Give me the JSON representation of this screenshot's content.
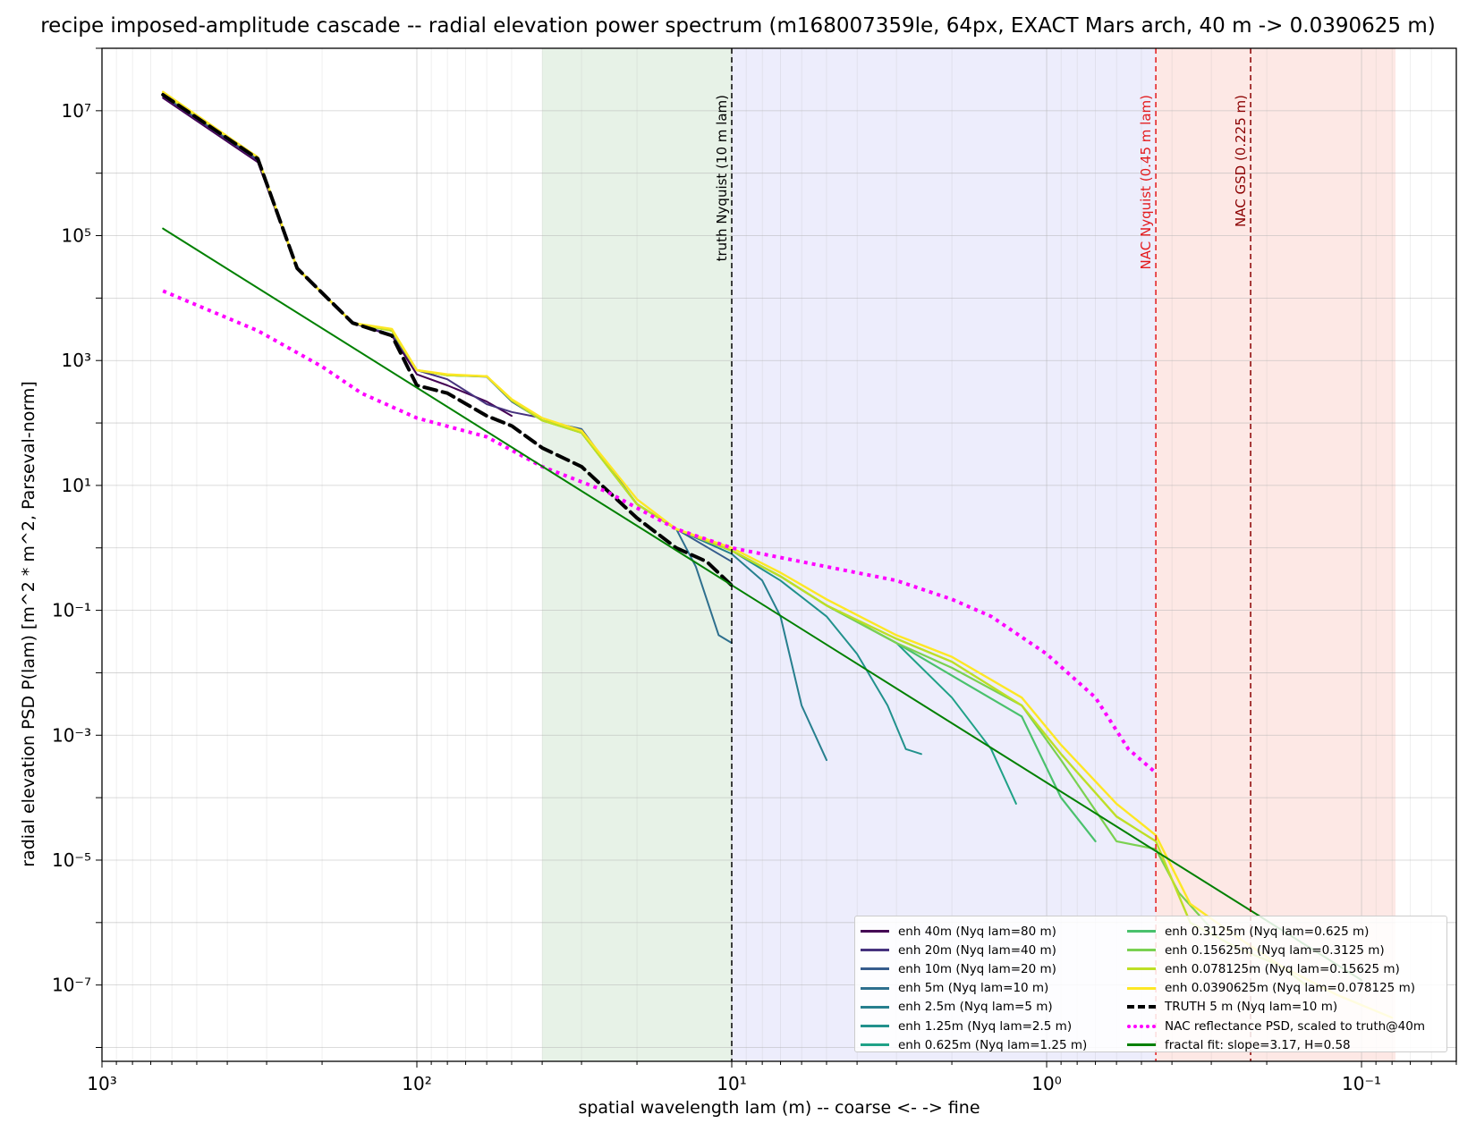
{
  "chart_data": {
    "type": "line",
    "title": "recipe imposed-amplitude cascade -- radial elevation power spectrum (m168007359le, 64px, EXACT Mars arch, 40 m -> 0.0390625 m)",
    "xlabel": "spatial wavelength lam (m) -- coarse <- -> fine",
    "ylabel": "radial elevation PSD  P(lam)  [m^2 * m^2, Parseval-norm]",
    "x_scale": "log",
    "y_scale": "log",
    "x_inverted": true,
    "xlim": [
      1000,
      0.05
    ],
    "ylim": [
      6e-09,
      100000000.0
    ],
    "x_ticks": [
      {
        "value": 1000,
        "label": "10³"
      },
      {
        "value": 100,
        "label": "10²"
      },
      {
        "value": 10,
        "label": "10¹"
      },
      {
        "value": 1,
        "label": "10⁰"
      },
      {
        "value": 0.1,
        "label": "10⁻¹"
      }
    ],
    "y_ticks": [
      {
        "value": 10000000.0,
        "label": "10⁷"
      },
      {
        "value": 100000.0,
        "label": "10⁵"
      },
      {
        "value": 1000.0,
        "label": "10³"
      },
      {
        "value": 10,
        "label": "10¹"
      },
      {
        "value": 0.1,
        "label": "10⁻¹"
      },
      {
        "value": 0.001,
        "label": "10⁻³"
      },
      {
        "value": 1e-05,
        "label": "10⁻⁵"
      },
      {
        "value": 1e-07,
        "label": "10⁻⁷"
      }
    ],
    "grid": true,
    "bands": [
      {
        "x_from": 40,
        "x_to": 10,
        "color": "#e1efe1"
      },
      {
        "x_from": 10,
        "x_to": 0.45,
        "color": "#e8e8fb"
      },
      {
        "x_from": 0.45,
        "x_to": 0.078,
        "color": "#fde2df"
      }
    ],
    "vlines": [
      {
        "x": 10,
        "label": "truth Nyquist (10 m lam)",
        "color": "#000000"
      },
      {
        "x": 0.45,
        "label": "NAC Nyquist (0.45 m lam)",
        "color": "#e31a1c"
      },
      {
        "x": 0.225,
        "label": "NAC GSD (0.225 m)",
        "color": "#8b0000"
      }
    ],
    "legend_position": "lower right",
    "series": [
      {
        "name": "enh 40m (Nyq lam=80 m)",
        "color": "#440154",
        "style": "solid",
        "width": 2,
        "points": [
          [
            640,
            16000000.0
          ],
          [
            320,
            1500000.0
          ],
          [
            240,
            30000.0
          ],
          [
            160,
            4000.0
          ],
          [
            120,
            2500.0
          ],
          [
            100,
            600
          ],
          [
            80,
            400
          ],
          [
            60,
            220
          ],
          [
            50,
            130
          ]
        ]
      },
      {
        "name": "enh 20m (Nyq lam=40 m)",
        "color": "#46327e",
        "style": "solid",
        "width": 2,
        "points": [
          [
            640,
            17000000.0
          ],
          [
            320,
            1600000.0
          ],
          [
            240,
            30000.0
          ],
          [
            160,
            4000.0
          ],
          [
            120,
            2600.0
          ],
          [
            100,
            700
          ],
          [
            80,
            500
          ],
          [
            60,
            200
          ],
          [
            50,
            150
          ],
          [
            40,
            120
          ]
        ]
      },
      {
        "name": "enh 10m (Nyq lam=20 m)",
        "color": "#365c8d",
        "style": "solid",
        "width": 2,
        "points": [
          [
            640,
            18000000.0
          ],
          [
            320,
            1700000.0
          ],
          [
            240,
            30000.0
          ],
          [
            160,
            4000.0
          ],
          [
            120,
            3000.0
          ],
          [
            100,
            700
          ],
          [
            80,
            580
          ],
          [
            60,
            550
          ],
          [
            50,
            220
          ],
          [
            40,
            110
          ],
          [
            30,
            80
          ],
          [
            20,
            5
          ],
          [
            15,
            2
          ],
          [
            10,
            0.6
          ]
        ]
      },
      {
        "name": "enh 5m (Nyq lam=10 m)",
        "color": "#2e6f8e",
        "style": "solid",
        "width": 2,
        "points": [
          [
            640,
            19000000.0
          ],
          [
            320,
            1800000.0
          ],
          [
            240,
            30000.0
          ],
          [
            160,
            4000.0
          ],
          [
            120,
            3000.0
          ],
          [
            100,
            700
          ],
          [
            80,
            580
          ],
          [
            60,
            560
          ],
          [
            50,
            230
          ],
          [
            40,
            110
          ],
          [
            30,
            70
          ],
          [
            20,
            5
          ],
          [
            15,
            2
          ],
          [
            13,
            0.5
          ],
          [
            11,
            0.04
          ],
          [
            10,
            0.03
          ]
        ]
      },
      {
        "name": "enh 2.5m (Nyq lam=5 m)",
        "color": "#277f8e",
        "style": "solid",
        "width": 2,
        "points": [
          [
            640,
            19000000.0
          ],
          [
            320,
            1800000.0
          ],
          [
            240,
            30000.0
          ],
          [
            160,
            4000.0
          ],
          [
            120,
            3000.0
          ],
          [
            100,
            700
          ],
          [
            80,
            580
          ],
          [
            60,
            560
          ],
          [
            50,
            230
          ],
          [
            40,
            110
          ],
          [
            30,
            70
          ],
          [
            20,
            5
          ],
          [
            15,
            2
          ],
          [
            10,
            0.8
          ],
          [
            8,
            0.3
          ],
          [
            7,
            0.08
          ],
          [
            6,
            0.003
          ],
          [
            5,
            0.0004
          ]
        ]
      },
      {
        "name": "enh 1.25m (Nyq lam=2.5 m)",
        "color": "#21918c",
        "style": "solid",
        "width": 2,
        "points": [
          [
            640,
            19000000.0
          ],
          [
            320,
            1800000.0
          ],
          [
            240,
            30000.0
          ],
          [
            160,
            4000.0
          ],
          [
            120,
            3000.0
          ],
          [
            100,
            700
          ],
          [
            80,
            580
          ],
          [
            60,
            560
          ],
          [
            50,
            230
          ],
          [
            40,
            110
          ],
          [
            30,
            70
          ],
          [
            20,
            5
          ],
          [
            15,
            2
          ],
          [
            10,
            0.9
          ],
          [
            7,
            0.3
          ],
          [
            5,
            0.08
          ],
          [
            4,
            0.02
          ],
          [
            3.2,
            0.003
          ],
          [
            2.8,
            0.0006
          ],
          [
            2.5,
            0.0005
          ]
        ]
      },
      {
        "name": "enh 0.625m (Nyq lam=1.25 m)",
        "color": "#1fa187",
        "style": "solid",
        "width": 2,
        "points": [
          [
            640,
            19000000.0
          ],
          [
            320,
            1800000.0
          ],
          [
            240,
            30000.0
          ],
          [
            160,
            4000.0
          ],
          [
            120,
            3000.0
          ],
          [
            100,
            700
          ],
          [
            80,
            580
          ],
          [
            60,
            560
          ],
          [
            50,
            230
          ],
          [
            40,
            110
          ],
          [
            30,
            70
          ],
          [
            20,
            5
          ],
          [
            15,
            2
          ],
          [
            10,
            0.9
          ],
          [
            7,
            0.35
          ],
          [
            5,
            0.12
          ],
          [
            3,
            0.03
          ],
          [
            2,
            0.004
          ],
          [
            1.5,
            0.0006
          ],
          [
            1.25,
            8e-05
          ]
        ]
      },
      {
        "name": "enh 0.3125m (Nyq lam=0.625 m)",
        "color": "#4ac16d",
        "style": "solid",
        "width": 2.2,
        "points": [
          [
            640,
            19000000.0
          ],
          [
            320,
            1800000.0
          ],
          [
            240,
            30000.0
          ],
          [
            160,
            4000.0
          ],
          [
            120,
            3000.0
          ],
          [
            100,
            700
          ],
          [
            80,
            580
          ],
          [
            60,
            560
          ],
          [
            50,
            230
          ],
          [
            40,
            110
          ],
          [
            30,
            70
          ],
          [
            20,
            5
          ],
          [
            15,
            2
          ],
          [
            10,
            0.9
          ],
          [
            7,
            0.35
          ],
          [
            5,
            0.12
          ],
          [
            3,
            0.03
          ],
          [
            2,
            0.009
          ],
          [
            1.2,
            0.002
          ],
          [
            0.9,
            0.0001
          ],
          [
            0.7,
            2e-05
          ]
        ]
      },
      {
        "name": "enh 0.15625m (Nyq lam=0.3125 m)",
        "color": "#7ad151",
        "style": "solid",
        "width": 2.2,
        "points": [
          [
            640,
            19000000.0
          ],
          [
            320,
            1800000.0
          ],
          [
            240,
            30000.0
          ],
          [
            160,
            4000.0
          ],
          [
            120,
            3000.0
          ],
          [
            100,
            700
          ],
          [
            80,
            580
          ],
          [
            60,
            560
          ],
          [
            50,
            230
          ],
          [
            40,
            110
          ],
          [
            30,
            70
          ],
          [
            20,
            5
          ],
          [
            15,
            2
          ],
          [
            10,
            0.9
          ],
          [
            7,
            0.35
          ],
          [
            5,
            0.12
          ],
          [
            3,
            0.03
          ],
          [
            2,
            0.012
          ],
          [
            1.2,
            0.003
          ],
          [
            0.9,
            0.0004
          ],
          [
            0.6,
            2e-05
          ],
          [
            0.45,
            1.5e-05
          ],
          [
            0.38,
            3e-06
          ],
          [
            0.3,
            8e-07
          ]
        ]
      },
      {
        "name": "enh 0.078125m (Nyq lam=0.15625 m)",
        "color": "#bddf26",
        "style": "solid",
        "width": 2.4,
        "points": [
          [
            640,
            19000000.0
          ],
          [
            320,
            1800000.0
          ],
          [
            240,
            30000.0
          ],
          [
            160,
            4000.0
          ],
          [
            120,
            3000.0
          ],
          [
            100,
            700
          ],
          [
            80,
            580
          ],
          [
            60,
            560
          ],
          [
            50,
            230
          ],
          [
            40,
            110
          ],
          [
            30,
            70
          ],
          [
            20,
            5
          ],
          [
            15,
            2
          ],
          [
            10,
            0.9
          ],
          [
            7,
            0.35
          ],
          [
            5,
            0.12
          ],
          [
            3,
            0.035
          ],
          [
            2,
            0.015
          ],
          [
            1.2,
            0.003
          ],
          [
            0.9,
            0.0005
          ],
          [
            0.6,
            5e-05
          ],
          [
            0.45,
            2e-05
          ],
          [
            0.35,
            1e-06
          ],
          [
            0.25,
            4e-07
          ],
          [
            0.18,
            2e-07
          ],
          [
            0.15,
            1e-07
          ]
        ]
      },
      {
        "name": "enh 0.0390625m (Nyq lam=0.078125 m)",
        "color": "#fde725",
        "style": "solid",
        "width": 2.4,
        "points": [
          [
            640,
            20000000.0
          ],
          [
            320,
            1800000.0
          ],
          [
            240,
            30000.0
          ],
          [
            160,
            4000.0
          ],
          [
            120,
            3200.0
          ],
          [
            100,
            700
          ],
          [
            80,
            600
          ],
          [
            60,
            560
          ],
          [
            50,
            240
          ],
          [
            40,
            120
          ],
          [
            30,
            75
          ],
          [
            20,
            6
          ],
          [
            15,
            2
          ],
          [
            10,
            1
          ],
          [
            7,
            0.4
          ],
          [
            5,
            0.15
          ],
          [
            3,
            0.04
          ],
          [
            2,
            0.018
          ],
          [
            1.2,
            0.004
          ],
          [
            0.9,
            0.0007
          ],
          [
            0.6,
            8e-05
          ],
          [
            0.45,
            2.5e-05
          ],
          [
            0.35,
            2e-06
          ],
          [
            0.25,
            6e-07
          ],
          [
            0.18,
            2e-07
          ],
          [
            0.12,
            7e-08
          ],
          [
            0.08,
            3e-08
          ]
        ]
      },
      {
        "name": "TRUTH 5 m (Nyq lam=10 m)",
        "color": "#000000",
        "style": "dashed",
        "width": 4,
        "points": [
          [
            640,
            18000000.0
          ],
          [
            320,
            1700000.0
          ],
          [
            240,
            30000.0
          ],
          [
            160,
            4000.0
          ],
          [
            120,
            2500.0
          ],
          [
            100,
            400
          ],
          [
            80,
            300
          ],
          [
            60,
            130
          ],
          [
            50,
            90
          ],
          [
            40,
            40
          ],
          [
            30,
            20
          ],
          [
            20,
            3
          ],
          [
            15,
            1
          ],
          [
            12,
            0.6
          ],
          [
            10,
            0.25
          ]
        ]
      },
      {
        "name": "NAC reflectance PSD, scaled to truth@40m",
        "color": "#ff00ff",
        "style": "dotted",
        "width": 4,
        "points": [
          [
            640,
            13000.0
          ],
          [
            320,
            3000.0
          ],
          [
            200,
            800
          ],
          [
            150,
            300
          ],
          [
            100,
            120
          ],
          [
            60,
            60
          ],
          [
            40,
            20
          ],
          [
            25,
            8
          ],
          [
            15,
            2
          ],
          [
            10,
            1
          ],
          [
            8,
            0.8
          ],
          [
            5,
            0.5
          ],
          [
            3,
            0.3
          ],
          [
            2,
            0.15
          ],
          [
            1.5,
            0.08
          ],
          [
            1,
            0.02
          ],
          [
            0.7,
            0.004
          ],
          [
            0.55,
            0.0006
          ],
          [
            0.45,
            0.00025
          ]
        ]
      },
      {
        "name": "fractal fit: slope=3.17, H=0.58",
        "color": "#008000",
        "style": "solid",
        "width": 2,
        "points": [
          [
            640,
            130000.0
          ],
          [
            0.1,
            1.2e-07
          ]
        ]
      }
    ]
  }
}
